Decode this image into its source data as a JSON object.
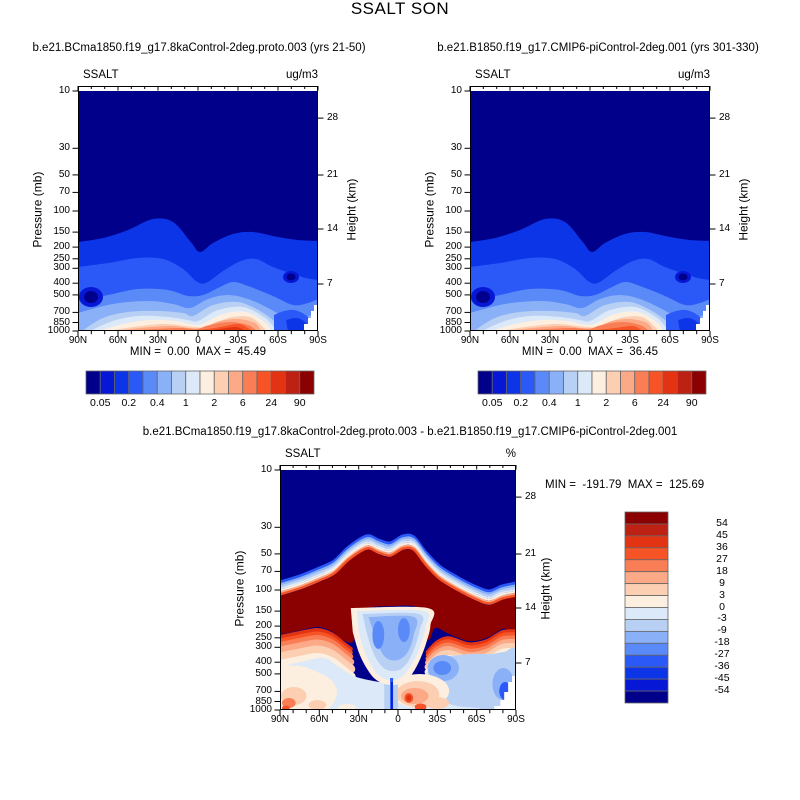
{
  "header": {
    "title": "SSALT SON"
  },
  "colors": {
    "background": "#ffffff",
    "frame": "#000000",
    "colorbar_border": "#666666",
    "palette16": [
      "#00008B",
      "#0618D6",
      "#0D35E8",
      "#2B59F7",
      "#5A8AF8",
      "#8AB0F8",
      "#B8D0F4",
      "#DCE9F8",
      "#FDEFE0",
      "#FCCFB3",
      "#FBA987",
      "#FA7E55",
      "#F65327",
      "#E23413",
      "#BC2114",
      "#8B0000"
    ]
  },
  "chart_data": [
    {
      "type": "contour",
      "panel": "top-left",
      "title": "b.e21.BCma1850.f19_g17.8kaControl-2deg.proto.003 (yrs 21-50)",
      "field": "SSALT",
      "units": "ug/m3",
      "x_axis": {
        "ticks": [
          "90N",
          "60N",
          "30N",
          "0",
          "30S",
          "60S",
          "90S"
        ],
        "minor_step_deg": 10
      },
      "y_axis_left": {
        "label": "Pressure (mb)",
        "scale": "log",
        "ticks": [
          10,
          30,
          50,
          70,
          100,
          150,
          200,
          250,
          300,
          400,
          500,
          700,
          850,
          1000
        ]
      },
      "y_axis_right": {
        "label": "Height (km)",
        "ticks": [
          28,
          21,
          14,
          7
        ]
      },
      "stats": {
        "min_label": "MIN =",
        "min_value": "0.00",
        "max_label": "MAX =",
        "max_value": "45.49"
      },
      "colorbar": {
        "orientation": "horizontal",
        "n_boxes": 16,
        "labels": [
          "0.05",
          "0.2",
          "0.4",
          "1",
          "2",
          "6",
          "24",
          "90"
        ]
      }
    },
    {
      "type": "contour",
      "panel": "top-right",
      "title": "b.e21.B1850.f19_g17.CMIP6-piControl-2deg.001 (yrs 301-330)",
      "field": "SSALT",
      "units": "ug/m3",
      "x_axis": {
        "ticks": [
          "90N",
          "60N",
          "30N",
          "0",
          "30S",
          "60S",
          "90S"
        ],
        "minor_step_deg": 10
      },
      "y_axis_left": {
        "label": "Pressure (mb)",
        "scale": "log",
        "ticks": [
          10,
          30,
          50,
          70,
          100,
          150,
          200,
          250,
          300,
          400,
          500,
          700,
          850,
          1000
        ]
      },
      "y_axis_right": {
        "label": "Height (km)",
        "ticks": [
          28,
          21,
          14,
          7
        ]
      },
      "stats": {
        "min_label": "MIN =",
        "min_value": "0.00",
        "max_label": "MAX =",
        "max_value": "36.45"
      },
      "colorbar": {
        "orientation": "horizontal",
        "n_boxes": 16,
        "labels": [
          "0.05",
          "0.2",
          "0.4",
          "1",
          "2",
          "6",
          "24",
          "90"
        ]
      }
    },
    {
      "type": "contour",
      "panel": "difference",
      "title": "b.e21.BCma1850.f19_g17.8kaControl-2deg.proto.003 - b.e21.B1850.f19_g17.CMIP6-piControl-2deg.001",
      "field": "SSALT",
      "units": "%",
      "x_axis": {
        "ticks": [
          "90N",
          "60N",
          "30N",
          "0",
          "30S",
          "60S",
          "90S"
        ],
        "minor_step_deg": 10
      },
      "y_axis_left": {
        "label": "Pressure (mb)",
        "scale": "log",
        "ticks": [
          10,
          30,
          50,
          70,
          100,
          150,
          200,
          250,
          300,
          400,
          500,
          700,
          850,
          1000
        ]
      },
      "y_axis_right": {
        "label": "Height (km)",
        "ticks": [
          28,
          21,
          14,
          7
        ]
      },
      "stats": {
        "min_label": "MIN =",
        "min_value": "-191.79",
        "max_label": "MAX =",
        "max_value": "125.69"
      },
      "colorbar": {
        "orientation": "vertical",
        "n_boxes": 16,
        "labels": [
          "54",
          "45",
          "36",
          "27",
          "18",
          "9",
          "3",
          "0",
          "-3",
          "-9",
          "-18",
          "-27",
          "-36",
          "-45",
          "-54"
        ]
      }
    }
  ]
}
